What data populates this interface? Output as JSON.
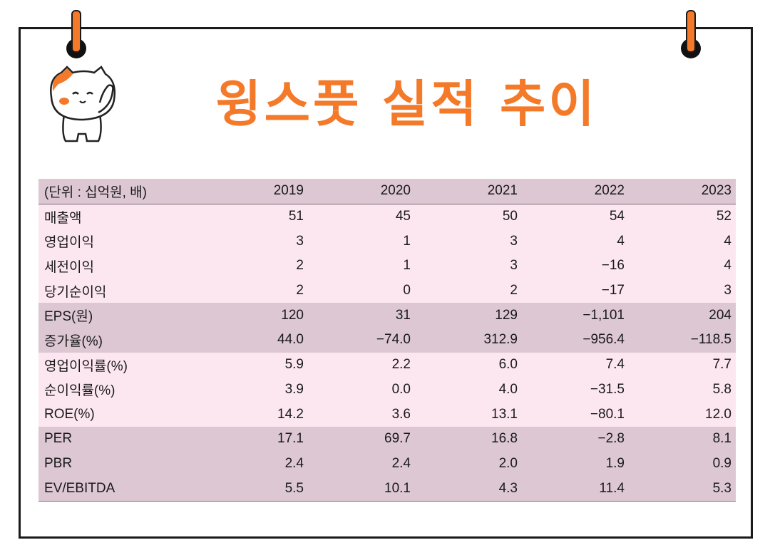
{
  "title": "윙스풋 실적 추이",
  "colors": {
    "accent": "#f47a2a",
    "header_row": "#dcc7d3",
    "light_row": "#fce7f1"
  },
  "table": {
    "unit_label": "(단위 : 십억원, 배)",
    "years": [
      "2019",
      "2020",
      "2021",
      "2022",
      "2023"
    ],
    "rows": [
      {
        "label": "매출액",
        "values": [
          "51",
          "45",
          "50",
          "54",
          "52"
        ]
      },
      {
        "label": "영업이익",
        "values": [
          "3",
          "1",
          "3",
          "4",
          "4"
        ]
      },
      {
        "label": "세전이익",
        "values": [
          "2",
          "1",
          "3",
          "−16",
          "4"
        ]
      },
      {
        "label": "당기순이익",
        "values": [
          "2",
          "0",
          "2",
          "−17",
          "3"
        ]
      },
      {
        "label": "EPS(원)",
        "values": [
          "120",
          "31",
          "129",
          "−1,101",
          "204"
        ]
      },
      {
        "label": "증가율(%)",
        "values": [
          "44.0",
          "−74.0",
          "312.9",
          "−956.4",
          "−118.5"
        ]
      },
      {
        "label": "영업이익률(%)",
        "values": [
          "5.9",
          "2.2",
          "6.0",
          "7.4",
          "7.7"
        ]
      },
      {
        "label": "순이익률(%)",
        "values": [
          "3.9",
          "0.0",
          "4.0",
          "−31.5",
          "5.8"
        ]
      },
      {
        "label": "ROE(%)",
        "values": [
          "14.2",
          "3.6",
          "13.1",
          "−80.1",
          "12.0"
        ]
      },
      {
        "label": "PER",
        "values": [
          "17.1",
          "69.7",
          "16.8",
          "−2.8",
          "8.1"
        ]
      },
      {
        "label": "PBR",
        "values": [
          "2.4",
          "2.4",
          "2.0",
          "1.9",
          "0.9"
        ]
      },
      {
        "label": "EV/EBITDA",
        "values": [
          "5.5",
          "10.1",
          "4.3",
          "11.4",
          "5.3"
        ]
      }
    ]
  }
}
